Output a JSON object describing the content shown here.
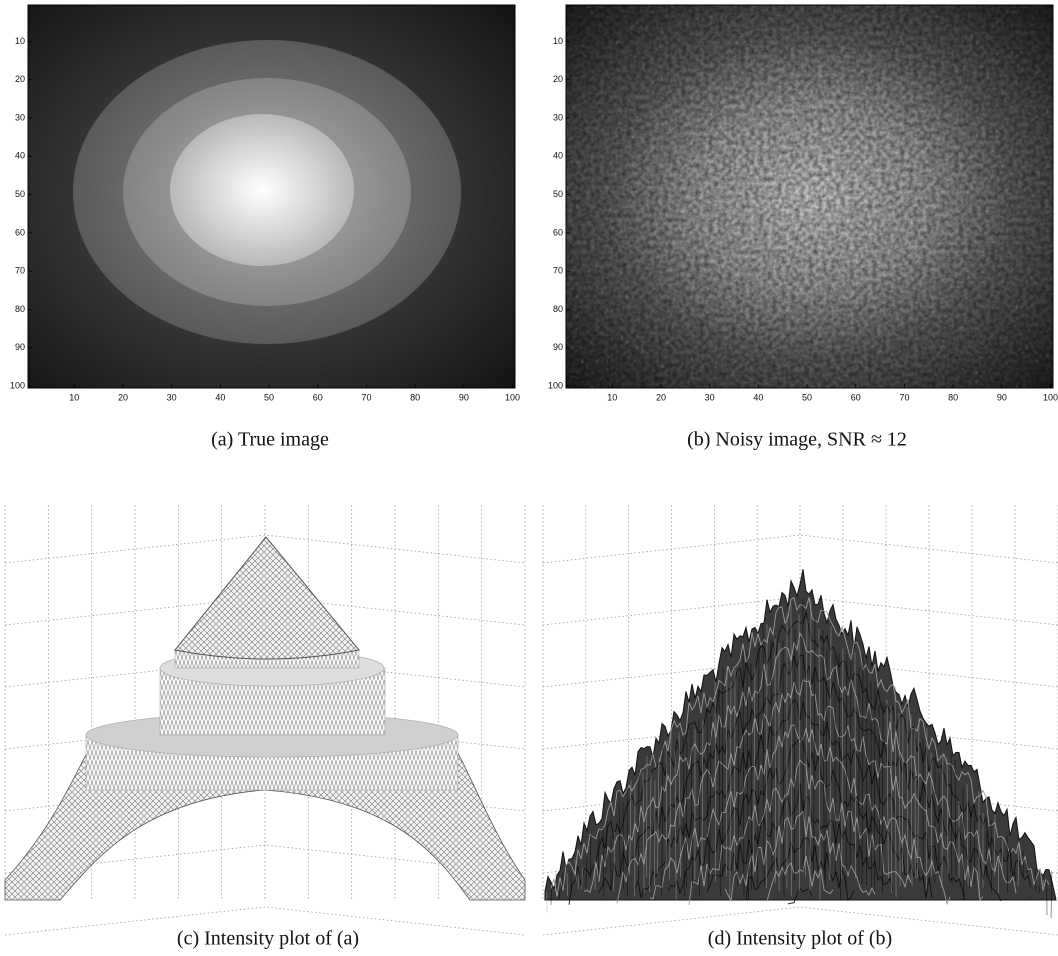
{
  "panels": [
    {
      "caption": "(a) True image",
      "xlim": [
        0.5,
        100.5
      ],
      "ylim": [
        0.5,
        100.5
      ],
      "xticks": [
        10,
        20,
        30,
        40,
        50,
        60,
        70,
        80,
        90,
        100
      ],
      "yticks": [
        10,
        20,
        30,
        40,
        50,
        60,
        70,
        80,
        90,
        100
      ]
    },
    {
      "caption": "(b) Noisy image, SNR ≈ 12",
      "xlim": [
        0.5,
        100.5
      ],
      "ylim": [
        0.5,
        100.5
      ],
      "xticks": [
        10,
        20,
        30,
        40,
        50,
        60,
        70,
        80,
        90,
        100
      ],
      "yticks": [
        10,
        20,
        30,
        40,
        50,
        60,
        70,
        80,
        90,
        100
      ]
    },
    {
      "caption": "(c) Intensity plot of (a)"
    },
    {
      "caption": "(d) Intensity plot of (b)"
    }
  ]
}
